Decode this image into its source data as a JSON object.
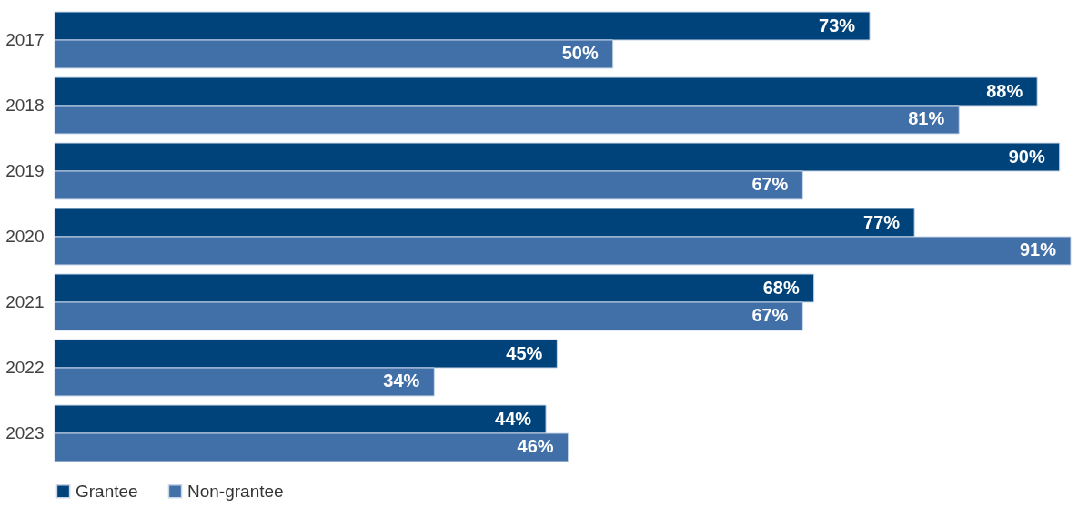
{
  "chart_data": {
    "type": "bar",
    "orientation": "horizontal",
    "categories": [
      "2017",
      "2018",
      "2019",
      "2020",
      "2021",
      "2022",
      "2023"
    ],
    "series": [
      {
        "name": "Grantee",
        "color": "#00437a",
        "values": [
          73,
          88,
          90,
          77,
          68,
          45,
          44
        ],
        "value_labels": [
          "73%",
          "88%",
          "90%",
          "77%",
          "68%",
          "45%",
          "44%"
        ]
      },
      {
        "name": "Non-grantee",
        "color": "#416fa8",
        "values": [
          50,
          81,
          67,
          91,
          67,
          34,
          46
        ],
        "value_labels": [
          "50%",
          "81%",
          "67%",
          "91%",
          "67%",
          "34%",
          "46%"
        ]
      }
    ],
    "legend": "bottom",
    "grid": false
  }
}
